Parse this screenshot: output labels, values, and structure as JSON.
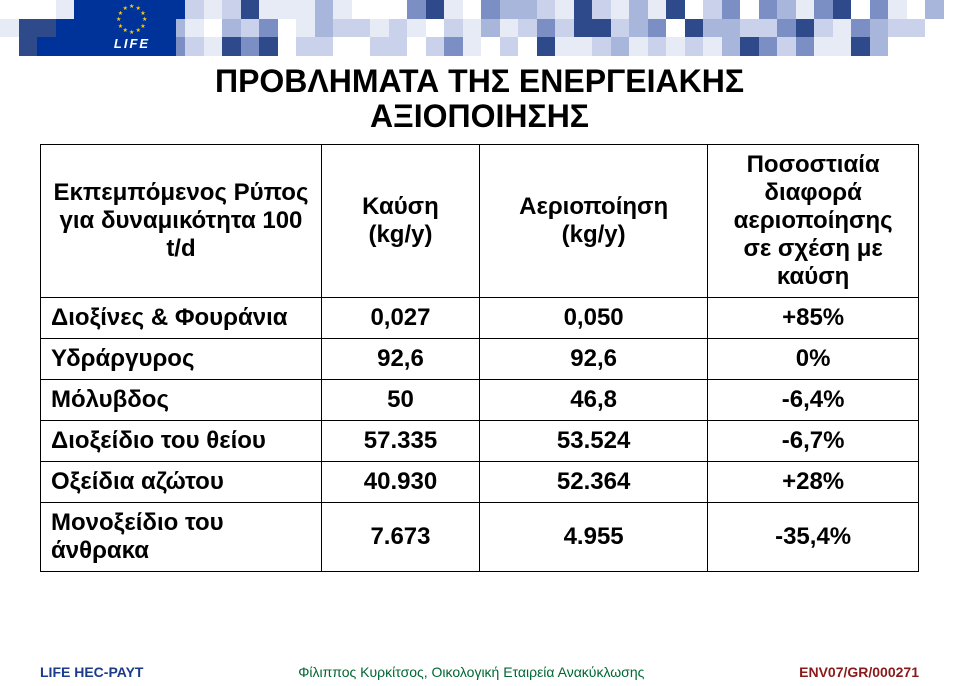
{
  "mosaic": {
    "rows": 3,
    "cols": 50,
    "palette": [
      "#2f4a8a",
      "#7b8fc4",
      "#a8b6db",
      "#c9d2ea",
      "#e7ebf6",
      "#ffffff"
    ]
  },
  "flag": {
    "text": "LIFE",
    "bg": "#003399",
    "star_color": "#ffcc00"
  },
  "title_line1": "ΠΡΟΒΛΗΜΑΤΑ ΤΗΣ ΕΝΕΡΓΕΙΑΚΗΣ",
  "title_line2": "ΑΞΙΟΠΟΙΗΣΗΣ",
  "table": {
    "header": [
      "Εκπεμπόμενος Ρύπος για δυναμικότητα 100 t/d",
      "Καύση (kg/y)",
      "Αεριοποίηση (kg/y)",
      "Ποσοστιαία διαφορά αεριοποίησης σε σχέση με καύση"
    ],
    "rows": [
      {
        "label": "Διοξίνες & Φουράνια",
        "c1": "0,027",
        "c2": "0,050",
        "c3": "+85%"
      },
      {
        "label": "Υδράργυρος",
        "c1": "92,6",
        "c2": "92,6",
        "c3": "0%"
      },
      {
        "label": "Μόλυβδος",
        "c1": "50",
        "c2": "46,8",
        "c3": "-6,4%"
      },
      {
        "label": "Διοξείδιο του θείου",
        "c1": "57.335",
        "c2": "53.524",
        "c3": "-6,7%"
      },
      {
        "label": "Οξείδια αζώτου",
        "c1": "40.930",
        "c2": "52.364",
        "c3": "+28%"
      },
      {
        "label": "Μονοξείδιο του άνθρακα",
        "c1": "7.673",
        "c2": "4.955",
        "c3": "-35,4%"
      }
    ]
  },
  "footer": {
    "left": {
      "text": "LIFE HEC-PAYT",
      "color": "#1a3a8a"
    },
    "center": {
      "text": "Φίλιππος Κυρκίτσος, Οικολογική Εταιρεία Ανακύκλωσης",
      "color": "#006633"
    },
    "right": {
      "text": "ENV07/GR/000271",
      "color": "#8a1a1a"
    }
  }
}
